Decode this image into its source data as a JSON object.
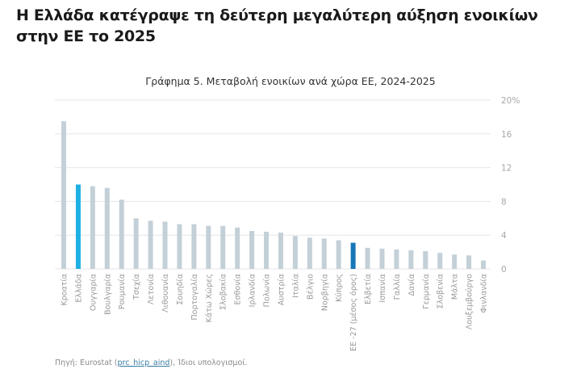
{
  "headline": "Η Ελλάδα κατέγραψε τη δεύτερη μεγαλύτερη αύξηση ενοικίων στην ΕΕ το 2025",
  "source": {
    "prefix": "Πηγή: Eurostat (",
    "link_text": "prc_hicp_aind",
    "suffix": "), Ίδιοι υπολογισμοί."
  },
  "chart_data": {
    "type": "bar",
    "title": "Γράφημα 5. Μεταβολή ενοικίων ανά χώρα ΕΕ, 2024-2025",
    "xlabel": "",
    "ylabel": "",
    "ylim": [
      0,
      20
    ],
    "yticks": [
      0,
      4,
      8,
      12,
      16,
      20
    ],
    "ytick_labels": [
      "0",
      "4",
      "8",
      "12",
      "16",
      "20%"
    ],
    "y_axis_position": "right",
    "grid": true,
    "categories": [
      "Κροατία",
      "Ελλάδα",
      "Ουγγαρία",
      "Βουλγαρία",
      "Ρουμανία",
      "Τσεχία",
      "Λετονία",
      "Λιθουανία",
      "Σουηδία",
      "Πορτογαλία",
      "Κάτω Χώρες",
      "Σλοβακία",
      "Εσθονία",
      "Ιρλανδία",
      "Πολωνία",
      "Αυστρία",
      "Ιταλία",
      "Βέλγιο",
      "Νορβηγία",
      "Κύπρος",
      "ΕΕ -27 (μέσος όρος)",
      "Ελβετία",
      "Ισπανία",
      "Γαλλία",
      "Δανία",
      "Γερμανία",
      "Σλοβενία",
      "Μάλτα",
      "Λουξεμβούργο",
      "Φινλανδία"
    ],
    "values": [
      17.5,
      10.0,
      9.8,
      9.6,
      8.2,
      6.0,
      5.7,
      5.6,
      5.3,
      5.3,
      5.1,
      5.1,
      4.9,
      4.5,
      4.4,
      4.3,
      3.9,
      3.7,
      3.6,
      3.4,
      3.1,
      2.5,
      2.4,
      2.3,
      2.2,
      2.1,
      1.9,
      1.7,
      1.6,
      1.0
    ],
    "highlight": {
      "Ελλάδα": "#1fb0e3",
      "ΕΕ -27 (μέσος όρος)": "#1677b8"
    },
    "default_color": "#c4d0d8",
    "grid_color": "#e4e6e8"
  }
}
